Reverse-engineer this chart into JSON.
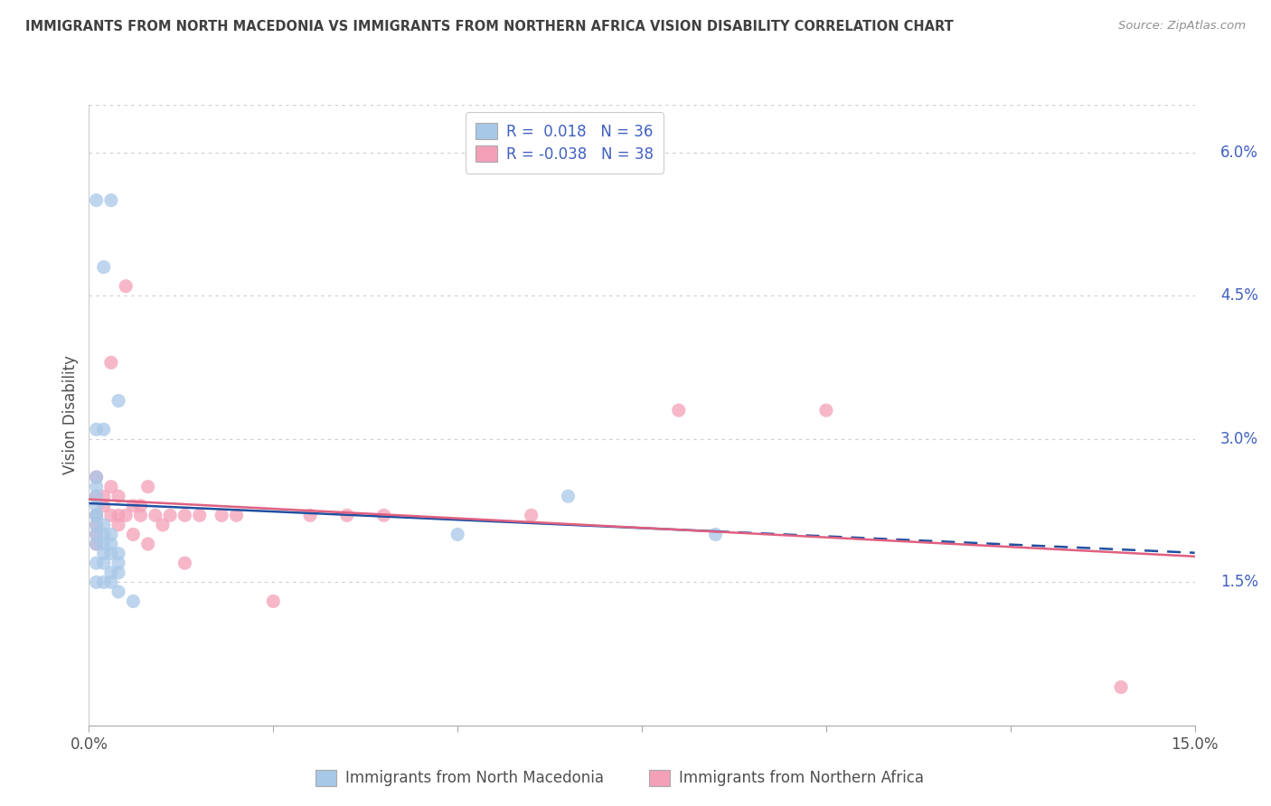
{
  "title": "IMMIGRANTS FROM NORTH MACEDONIA VS IMMIGRANTS FROM NORTHERN AFRICA VISION DISABILITY CORRELATION CHART",
  "source": "Source: ZipAtlas.com",
  "ylabel": "Vision Disability",
  "legend_label_1": "Immigrants from North Macedonia",
  "legend_label_2": "Immigrants from Northern Africa",
  "r1": "0.018",
  "n1": "36",
  "r2": "-0.038",
  "n2": "38",
  "dot_color_blue": "#A8C8E8",
  "dot_color_pink": "#F4A0B8",
  "line_color_blue": "#2050A0",
  "line_color_pink": "#E06080",
  "background_color": "#FFFFFF",
  "title_color": "#404040",
  "source_color": "#909090",
  "axis_color": "#CCCCCC",
  "tick_color": "#909090",
  "label_color": "#4060C0",
  "scatter_blue": [
    [
      0.001,
      0.055
    ],
    [
      0.003,
      0.055
    ],
    [
      0.002,
      0.048
    ],
    [
      0.001,
      0.031
    ],
    [
      0.002,
      0.031
    ],
    [
      0.004,
      0.034
    ],
    [
      0.001,
      0.026
    ],
    [
      0.001,
      0.025
    ],
    [
      0.001,
      0.024
    ],
    [
      0.001,
      0.023
    ],
    [
      0.001,
      0.022
    ],
    [
      0.001,
      0.022
    ],
    [
      0.001,
      0.021
    ],
    [
      0.002,
      0.021
    ],
    [
      0.001,
      0.02
    ],
    [
      0.002,
      0.02
    ],
    [
      0.003,
      0.02
    ],
    [
      0.001,
      0.019
    ],
    [
      0.002,
      0.019
    ],
    [
      0.003,
      0.019
    ],
    [
      0.002,
      0.018
    ],
    [
      0.003,
      0.018
    ],
    [
      0.004,
      0.018
    ],
    [
      0.001,
      0.017
    ],
    [
      0.002,
      0.017
    ],
    [
      0.004,
      0.017
    ],
    [
      0.003,
      0.016
    ],
    [
      0.004,
      0.016
    ],
    [
      0.001,
      0.015
    ],
    [
      0.002,
      0.015
    ],
    [
      0.003,
      0.015
    ],
    [
      0.004,
      0.014
    ],
    [
      0.006,
      0.013
    ],
    [
      0.065,
      0.024
    ],
    [
      0.085,
      0.02
    ],
    [
      0.05,
      0.02
    ]
  ],
  "scatter_pink": [
    [
      0.005,
      0.046
    ],
    [
      0.003,
      0.038
    ],
    [
      0.08,
      0.033
    ],
    [
      0.1,
      0.033
    ],
    [
      0.001,
      0.026
    ],
    [
      0.003,
      0.025
    ],
    [
      0.008,
      0.025
    ],
    [
      0.001,
      0.024
    ],
    [
      0.002,
      0.024
    ],
    [
      0.004,
      0.024
    ],
    [
      0.002,
      0.023
    ],
    [
      0.006,
      0.023
    ],
    [
      0.007,
      0.023
    ],
    [
      0.001,
      0.022
    ],
    [
      0.003,
      0.022
    ],
    [
      0.004,
      0.022
    ],
    [
      0.005,
      0.022
    ],
    [
      0.007,
      0.022
    ],
    [
      0.009,
      0.022
    ],
    [
      0.011,
      0.022
    ],
    [
      0.013,
      0.022
    ],
    [
      0.015,
      0.022
    ],
    [
      0.018,
      0.022
    ],
    [
      0.02,
      0.022
    ],
    [
      0.03,
      0.022
    ],
    [
      0.035,
      0.022
    ],
    [
      0.04,
      0.022
    ],
    [
      0.06,
      0.022
    ],
    [
      0.001,
      0.021
    ],
    [
      0.004,
      0.021
    ],
    [
      0.01,
      0.021
    ],
    [
      0.001,
      0.02
    ],
    [
      0.006,
      0.02
    ],
    [
      0.001,
      0.019
    ],
    [
      0.008,
      0.019
    ],
    [
      0.013,
      0.017
    ],
    [
      0.025,
      0.013
    ],
    [
      0.14,
      0.004
    ]
  ],
  "xlim": [
    0.0,
    0.15
  ],
  "ylim": [
    0.0,
    0.065
  ],
  "yticks_right": [
    0.015,
    0.03,
    0.045,
    0.06
  ],
  "ytick_labels_right": [
    "1.5%",
    "3.0%",
    "4.5%",
    "6.0%"
  ],
  "xticks": [
    0.0,
    0.025,
    0.05,
    0.075,
    0.1,
    0.125,
    0.15
  ],
  "xtick_labels": [
    "0.0%",
    "",
    "",
    "",
    "",
    "",
    "15.0%"
  ]
}
